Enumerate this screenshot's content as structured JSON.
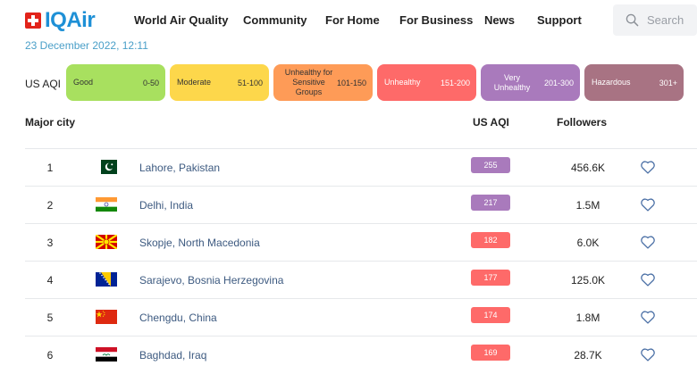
{
  "brand": {
    "logo_text": "IQAir"
  },
  "nav": [
    {
      "label": "World Air Quality"
    },
    {
      "label": "Community"
    },
    {
      "label": "For Home"
    },
    {
      "label": "For Business"
    },
    {
      "label": "News"
    },
    {
      "label": "Support"
    }
  ],
  "search": {
    "placeholder": "Search"
  },
  "timestamp": "23 December 2022, 12:11",
  "legend": {
    "label": "US AQI",
    "levels": [
      {
        "name": "Good",
        "range": "0-50",
        "color": "#a8e05f",
        "text_color": "#333333"
      },
      {
        "name": "Moderate",
        "range": "51-100",
        "color": "#fdd74b",
        "text_color": "#333333"
      },
      {
        "name": "Unhealthy for Sensitive Groups",
        "range": "101-150",
        "color": "#fe9b57",
        "text_color": "#333333"
      },
      {
        "name": "Unhealthy",
        "range": "151-200",
        "color": "#fe6a69",
        "text_color": "#ffffff"
      },
      {
        "name": "Very Unhealthy",
        "range": "201-300",
        "color": "#a97abc",
        "text_color": "#ffffff"
      },
      {
        "name": "Hazardous",
        "range": "301+",
        "color": "#a87383",
        "text_color": "#ffffff"
      }
    ]
  },
  "table": {
    "headers": {
      "city": "Major city",
      "aqi": "US AQI",
      "followers": "Followers"
    },
    "rows": [
      {
        "rank": "1",
        "flag": "pakistan-flag-icon",
        "city": "Lahore, Pakistan",
        "aqi": "255",
        "aqi_color": "#a97abc",
        "followers": "456.6K"
      },
      {
        "rank": "2",
        "flag": "india-flag-icon",
        "city": "Delhi, India",
        "aqi": "217",
        "aqi_color": "#a97abc",
        "followers": "1.5M"
      },
      {
        "rank": "3",
        "flag": "north-macedonia-flag-icon",
        "city": "Skopje, North Macedonia",
        "aqi": "182",
        "aqi_color": "#fe6a69",
        "followers": "6.0K"
      },
      {
        "rank": "4",
        "flag": "bosnia-herzegovina-flag-icon",
        "city": "Sarajevo, Bosnia Herzegovina",
        "aqi": "177",
        "aqi_color": "#fe6a69",
        "followers": "125.0K"
      },
      {
        "rank": "5",
        "flag": "china-flag-icon",
        "city": "Chengdu, China",
        "aqi": "174",
        "aqi_color": "#fe6a69",
        "followers": "1.8M"
      },
      {
        "rank": "6",
        "flag": "iraq-flag-icon",
        "city": "Baghdad, Iraq",
        "aqi": "169",
        "aqi_color": "#fe6a69",
        "followers": "28.7K"
      }
    ]
  }
}
